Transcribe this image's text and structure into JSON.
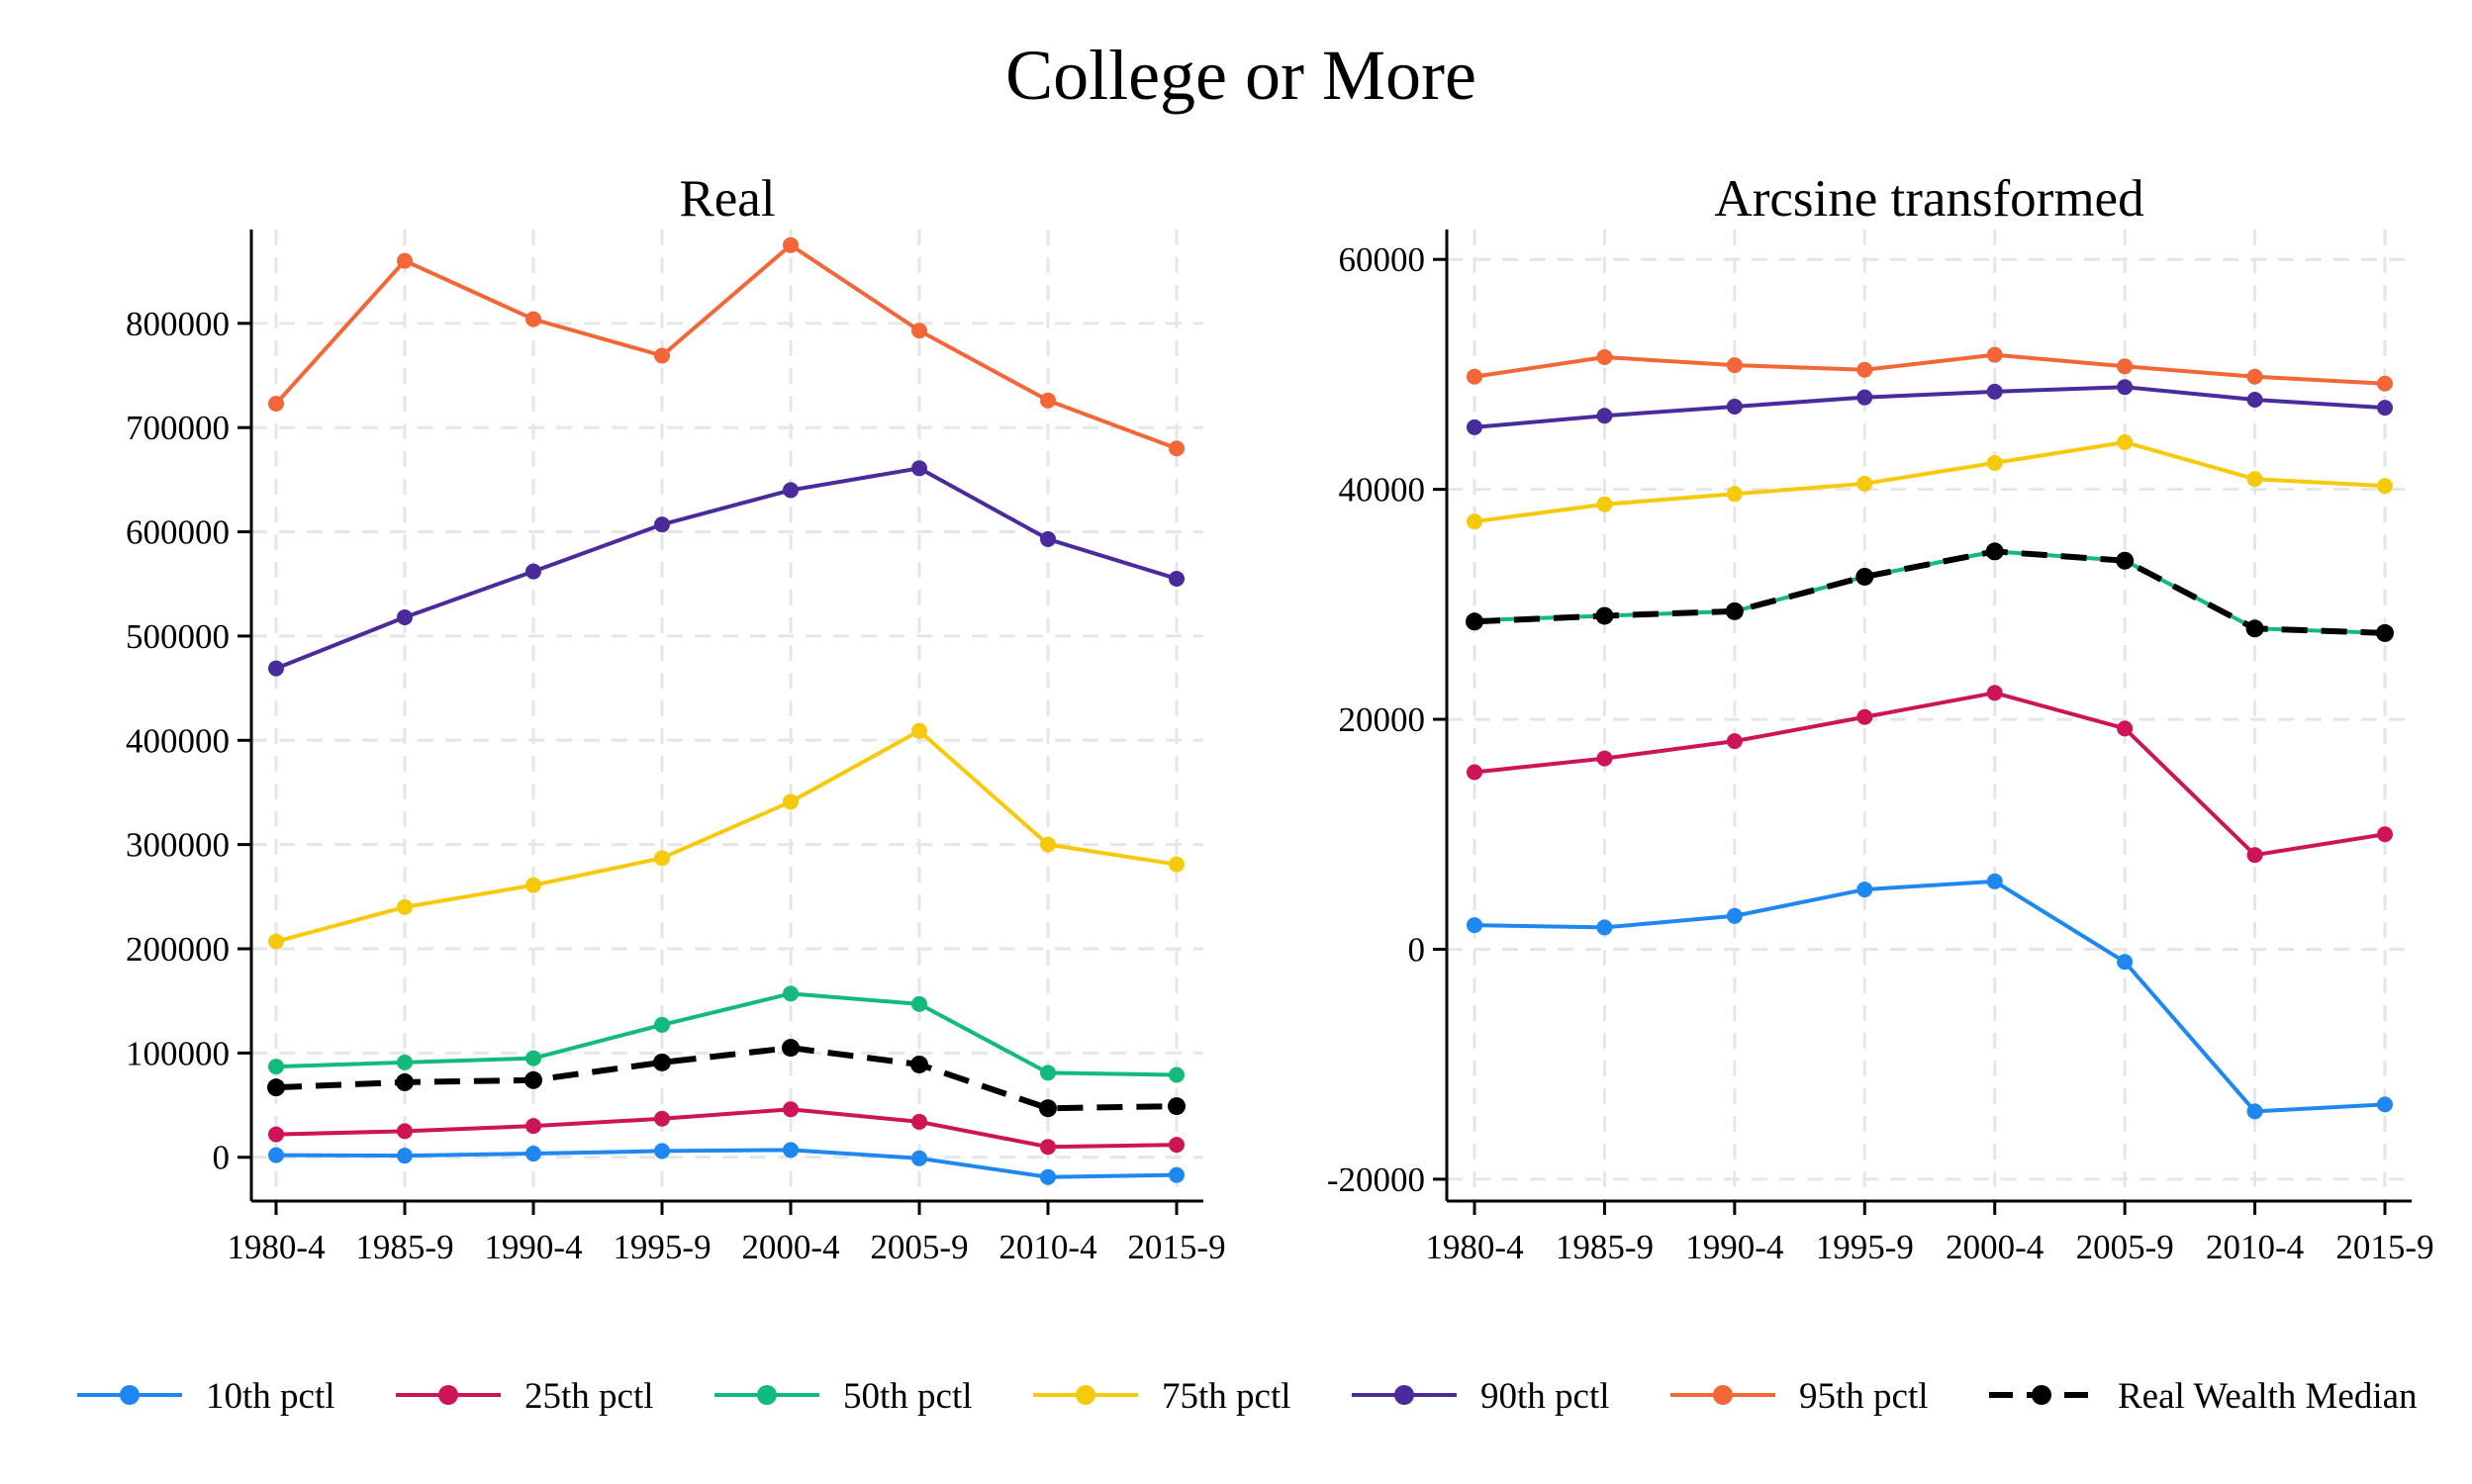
{
  "chart_data": [
    {
      "type": "line",
      "title": "Real",
      "xlabel": "",
      "ylabel": "",
      "categories": [
        "1980-4",
        "1985-9",
        "1990-4",
        "1995-9",
        "2000-4",
        "2005-9",
        "2010-4",
        "2015-9"
      ],
      "yticks": [
        0,
        100000,
        200000,
        300000,
        400000,
        500000,
        600000,
        700000,
        800000
      ],
      "ylim": [
        -42000,
        890000
      ],
      "grid": true,
      "series": [
        {
          "name": "10th pctl",
          "color": "#1f88f0",
          "dashed": false,
          "values": [
            2000,
            1500,
            3500,
            6000,
            7000,
            -1000,
            -19000,
            -17000
          ]
        },
        {
          "name": "25th pctl",
          "color": "#cc1457",
          "dashed": false,
          "values": [
            22000,
            25000,
            30000,
            37000,
            46000,
            34000,
            10000,
            12000
          ]
        },
        {
          "name": "50th pctl",
          "color": "#12ba7b",
          "dashed": false,
          "values": [
            87000,
            91000,
            95000,
            127000,
            157000,
            147000,
            81000,
            79000
          ]
        },
        {
          "name": "75th pctl",
          "color": "#f6ca0c",
          "dashed": false,
          "values": [
            207000,
            240000,
            261000,
            287000,
            341000,
            409000,
            300000,
            281000
          ]
        },
        {
          "name": "90th pctl",
          "color": "#4a2b9b",
          "dashed": false,
          "values": [
            469000,
            518000,
            562000,
            607000,
            640000,
            661000,
            593000,
            555000
          ]
        },
        {
          "name": "95th pctl",
          "color": "#f26637",
          "dashed": false,
          "values": [
            723000,
            860000,
            804000,
            769000,
            875000,
            793000,
            726000,
            680000
          ]
        },
        {
          "name": "Real Wealth Median",
          "color": "#000000",
          "dashed": true,
          "values": [
            67000,
            72000,
            74000,
            91000,
            105000,
            89000,
            47000,
            49000
          ]
        }
      ]
    },
    {
      "type": "line",
      "title": "Arcsine transformed",
      "xlabel": "",
      "ylabel": "",
      "categories": [
        "1980-4",
        "1985-9",
        "1990-4",
        "1995-9",
        "2000-4",
        "2005-9",
        "2010-4",
        "2015-9"
      ],
      "yticks": [
        -20000,
        0,
        20000,
        40000,
        60000
      ],
      "ylim": [
        -21900,
        62600
      ],
      "grid": true,
      "series": [
        {
          "name": "10th pctl",
          "color": "#1f88f0",
          "dashed": false,
          "values": [
            2100,
            1900,
            2900,
            5200,
            5900,
            -1100,
            -14100,
            -13500
          ]
        },
        {
          "name": "25th pctl",
          "color": "#cc1457",
          "dashed": false,
          "values": [
            15400,
            16600,
            18100,
            20200,
            22300,
            19200,
            8200,
            10000
          ]
        },
        {
          "name": "50th pctl",
          "color": "#12ba7b",
          "dashed": false,
          "values": [
            28600,
            29000,
            29400,
            32400,
            34600,
            33800,
            27900,
            27500
          ]
        },
        {
          "name": "75th pctl",
          "color": "#f6ca0c",
          "dashed": false,
          "values": [
            37200,
            38700,
            39600,
            40500,
            42300,
            44100,
            40900,
            40300
          ]
        },
        {
          "name": "90th pctl",
          "color": "#4a2b9b",
          "dashed": false,
          "values": [
            45400,
            46400,
            47200,
            48000,
            48500,
            48900,
            47800,
            47100
          ]
        },
        {
          "name": "95th pctl",
          "color": "#f26637",
          "dashed": false,
          "values": [
            49800,
            51500,
            50800,
            50400,
            51700,
            50700,
            49800,
            49200
          ]
        },
        {
          "name": "Real Wealth Median",
          "color": "#000000",
          "dashed": true,
          "values": [
            28500,
            29000,
            29400,
            32400,
            34600,
            33800,
            27900,
            27500
          ]
        }
      ]
    }
  ],
  "figure": {
    "suptitle": "College or More",
    "legend_position": "bottom"
  }
}
